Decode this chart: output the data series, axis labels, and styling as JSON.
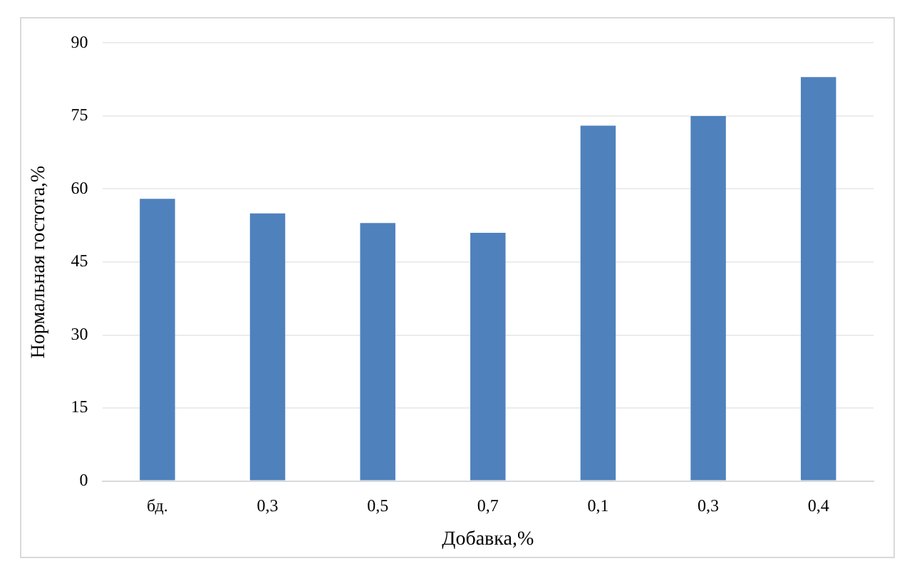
{
  "chart_data": {
    "type": "bar",
    "xlabel": "Добавка,%",
    "ylabel": "Нормальная гостота,%",
    "categories": [
      "бд.",
      "0,3",
      "0,5",
      "0,7",
      "0,1",
      "0,3",
      "0,4"
    ],
    "values": [
      58,
      55,
      53,
      51,
      73,
      75,
      83
    ],
    "color": "#4f81bd",
    "ylim": [
      0,
      90
    ],
    "yticks": [
      0,
      15,
      30,
      45,
      60,
      75,
      90
    ],
    "grid": "y",
    "legend": false
  }
}
